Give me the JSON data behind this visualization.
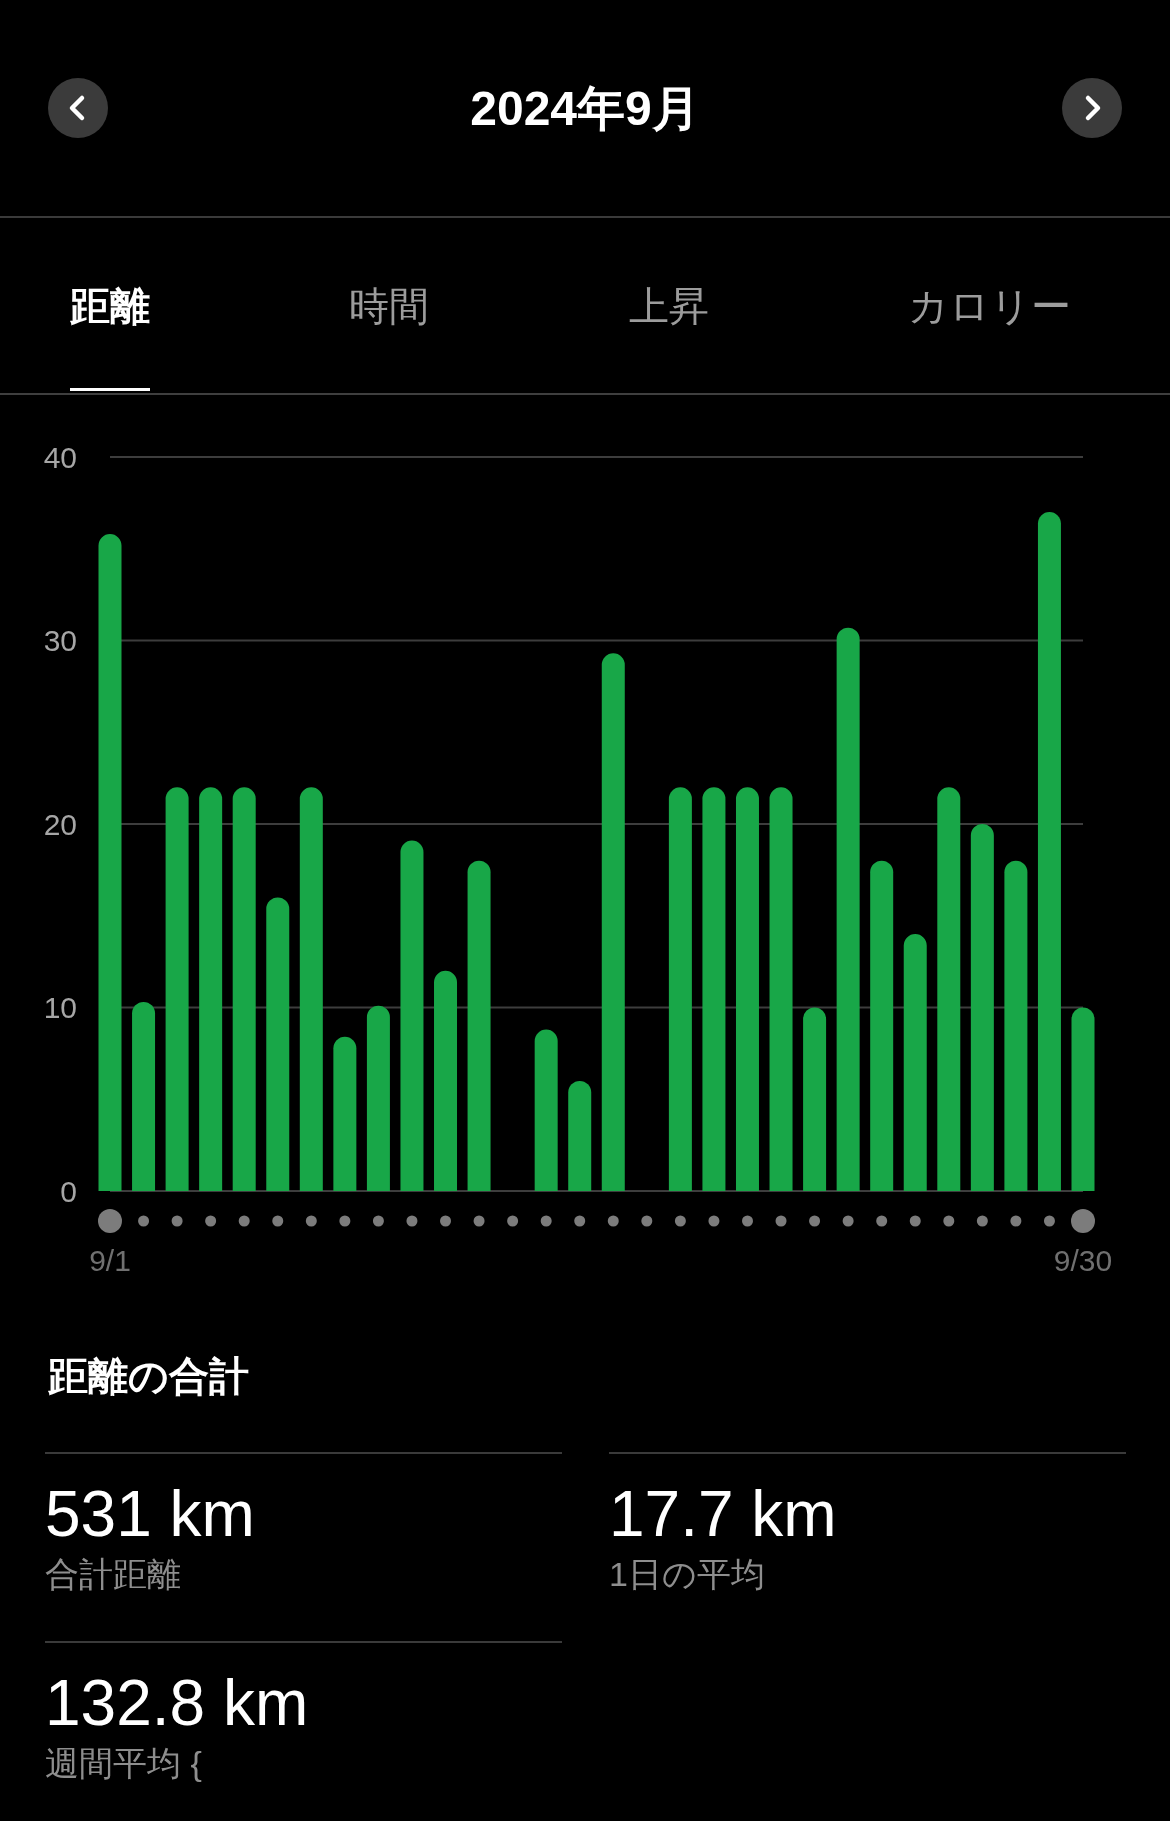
{
  "chart_data": [
    {
      "type": "bar",
      "title": "2024年9月",
      "ylabel": "距離",
      "annotations": [
        "時間",
        "上昇",
        "カロリー"
      ],
      "categories": [
        "9/1",
        null,
        null,
        null,
        null,
        null,
        null,
        null,
        null,
        null,
        null,
        null,
        null,
        null,
        null,
        null,
        null,
        null,
        null,
        null,
        null,
        null,
        null,
        null,
        null,
        null,
        null,
        null,
        null,
        "9/30"
      ],
      "values": [
        35.8,
        10.3,
        22,
        22,
        22,
        16,
        22,
        8.4,
        10.1,
        19.1,
        12,
        18,
        0,
        8.8,
        6,
        29.3,
        0,
        22,
        22,
        22,
        22,
        10,
        30.7,
        18,
        14,
        22,
        20,
        18,
        37,
        10
      ],
      "color": "#18a748",
      "ylim": [
        0,
        40
      ],
      "yticks": [
        0,
        10,
        20,
        30,
        40
      ],
      "grid": "y"
    },
    {
      "type": "other",
      "title": "距離の合計",
      "annotations": [
        "531 km",
        "合計距離",
        "17.7 km",
        "1日の平均",
        "132.8 km",
        "週間平均 {"
      ]
    }
  ]
}
